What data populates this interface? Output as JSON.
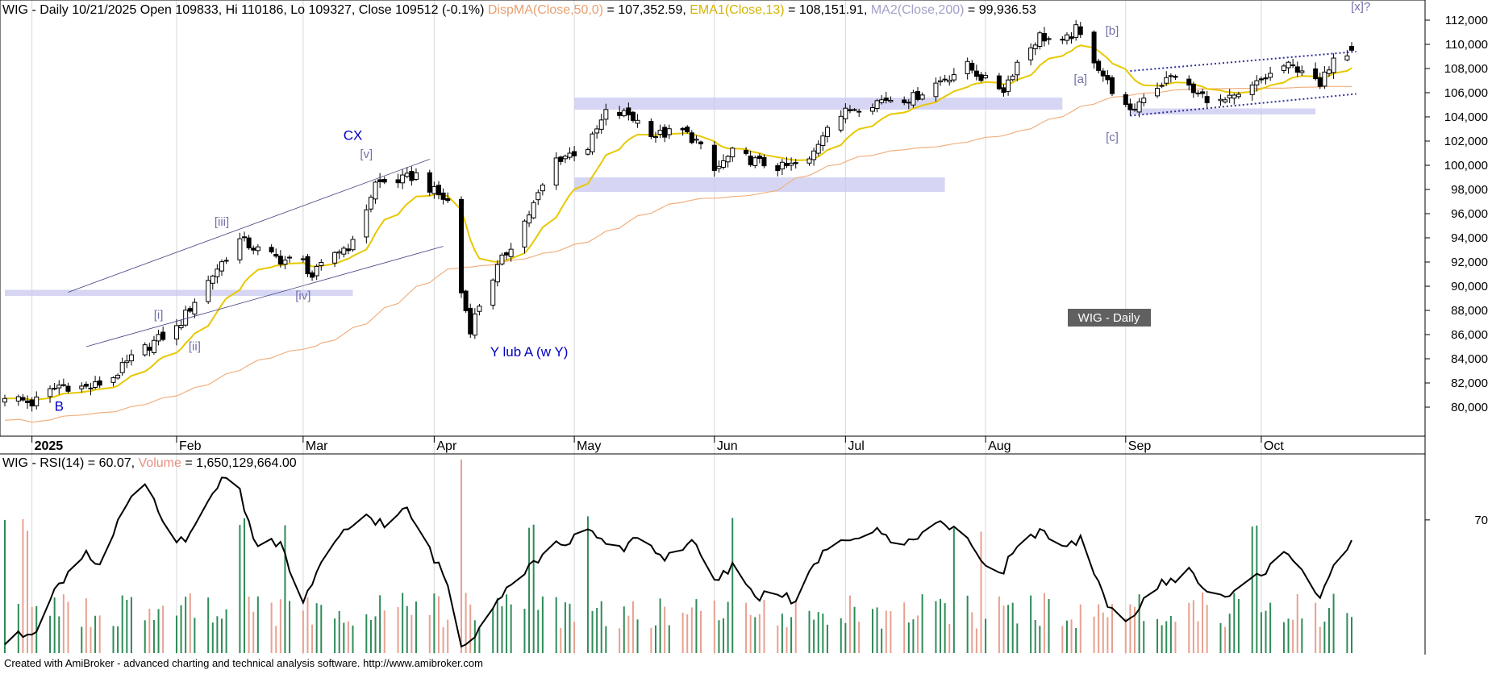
{
  "header": {
    "prefix": "WIG - Daily 10/21/2025 Open 109833, Hi 110186, Lo 109327, Close 109512 (-0.1%)",
    "ma1_label": "DispMA(Close,50,0)",
    "ma1_value": " = 107,352.59,",
    "ema_label": "EMA1(Close,13)",
    "ema_value": " = 108,151.91,",
    "ma2_label": "MA2(Close,200)",
    "ma2_value": " = 99,936.53"
  },
  "rsi_header": {
    "prefix": "WIG - RSI(14) = 60.07,",
    "volume_label": "Volume",
    "volume_value": " = 1,650,129,664.00"
  },
  "footer": {
    "text": "Created with AmiBroker - advanced charting and technical analysis software. http://www.amibroker.com"
  },
  "watermark": "WIG - Daily",
  "colors": {
    "ma1": "#f0b080",
    "ema": "#e8c800",
    "ma2": "#a8a8d0",
    "vol_up": "#2e8b57",
    "vol_down": "#e8a090",
    "band": "#c8c8f0",
    "channel": "#3030a0",
    "wave_label": "#7070a8",
    "wave_major": "#0000c0"
  },
  "chart_data": [
    {
      "type": "candlestick",
      "title": "WIG - Daily",
      "ylim": [
        78000,
        113000
      ],
      "y_ticks": [
        "112,000",
        "110,000",
        "108,000",
        "106,000",
        "104,000",
        "102,000",
        "100,000",
        "98,000",
        "96,000",
        "94,000",
        "92,000",
        "90,000",
        "88,000",
        "86,000",
        "84,000",
        "82,000",
        "80,000"
      ],
      "x_ticks": [
        "2025",
        "Feb",
        "Mar",
        "Apr",
        "May",
        "Jun",
        "Jul",
        "Aug",
        "Sep",
        "Oct"
      ],
      "close_anchors": [
        [
          "2024-12-27",
          81000
        ],
        [
          "2025-01-02",
          80300
        ],
        [
          "2025-01-08",
          81800
        ],
        [
          "2025-01-15",
          81600
        ],
        [
          "2025-01-20",
          82500
        ],
        [
          "2025-01-24",
          84000
        ],
        [
          "2025-01-29",
          85400
        ],
        [
          "2025-02-03",
          86500
        ],
        [
          "2025-02-07",
          88800
        ],
        [
          "2025-02-12",
          91500
        ],
        [
          "2025-02-17",
          93800
        ],
        [
          "2025-02-21",
          93000
        ],
        [
          "2025-02-26",
          92200
        ],
        [
          "2025-03-03",
          92000
        ],
        [
          "2025-03-05",
          90800
        ],
        [
          "2025-03-10",
          92800
        ],
        [
          "2025-03-14",
          93500
        ],
        [
          "2025-03-19",
          98500
        ],
        [
          "2025-03-25",
          98800
        ],
        [
          "2025-03-28",
          99200
        ],
        [
          "2025-04-01",
          97800
        ],
        [
          "2025-04-04",
          97000
        ],
        [
          "2025-04-07",
          89500
        ],
        [
          "2025-04-09",
          86500
        ],
        [
          "2025-04-11",
          88500
        ],
        [
          "2025-04-15",
          91500
        ],
        [
          "2025-04-22",
          96000
        ],
        [
          "2025-04-28",
          100500
        ],
        [
          "2025-05-05",
          101500
        ],
        [
          "2025-05-09",
          104300
        ],
        [
          "2025-05-14",
          104200
        ],
        [
          "2025-05-20",
          102500
        ],
        [
          "2025-05-26",
          102800
        ],
        [
          "2025-05-29",
          102000
        ],
        [
          "2025-06-02",
          99500
        ],
        [
          "2025-06-06",
          101000
        ],
        [
          "2025-06-12",
          100200
        ],
        [
          "2025-06-17",
          99800
        ],
        [
          "2025-06-23",
          100300
        ],
        [
          "2025-06-27",
          103500
        ],
        [
          "2025-07-03",
          104800
        ],
        [
          "2025-07-10",
          105500
        ],
        [
          "2025-07-16",
          105600
        ],
        [
          "2025-07-22",
          107000
        ],
        [
          "2025-07-28",
          108200
        ],
        [
          "2025-08-01",
          107000
        ],
        [
          "2025-08-05",
          106300
        ],
        [
          "2025-08-08",
          108500
        ],
        [
          "2025-08-13",
          110700
        ],
        [
          "2025-08-18",
          110000
        ],
        [
          "2025-08-21",
          111200
        ],
        [
          "2025-08-25",
          108800
        ],
        [
          "2025-08-28",
          106800
        ],
        [
          "2025-09-02",
          104200
        ],
        [
          "2025-09-05",
          105800
        ],
        [
          "2025-09-09",
          106800
        ],
        [
          "2025-09-12",
          107500
        ],
        [
          "2025-09-16",
          106000
        ],
        [
          "2025-09-22",
          105200
        ],
        [
          "2025-09-26",
          105600
        ],
        [
          "2025-10-01",
          107000
        ],
        [
          "2025-10-06",
          108200
        ],
        [
          "2025-10-10",
          108000
        ],
        [
          "2025-10-14",
          106400
        ],
        [
          "2025-10-17",
          109200
        ],
        [
          "2025-10-21",
          109512
        ]
      ],
      "last_bar": {
        "date": "2025-10-21",
        "open": 109833,
        "high": 110186,
        "low": 109327,
        "close": 109512
      },
      "series": [
        {
          "name": "DispMA(Close,50,0)",
          "last": 107352.59
        },
        {
          "name": "EMA1(Close,13)",
          "last": 108151.91
        },
        {
          "name": "MA2(Close,200)",
          "last": 99936.53
        }
      ],
      "support_zones": [
        {
          "from": "2024-12-27",
          "to": "2025-03-14",
          "low": 89200,
          "high": 89700
        },
        {
          "from": "2025-05-02",
          "to": "2025-08-18",
          "low": 104600,
          "high": 105600
        },
        {
          "from": "2025-05-02",
          "to": "2025-07-23",
          "low": 97800,
          "high": 99000
        },
        {
          "from": "2025-09-02",
          "to": "2025-10-13",
          "low": 104200,
          "high": 104700
        }
      ],
      "trendlines": [
        {
          "style": "solid",
          "from": [
            "2025-01-10",
            89500
          ],
          "to": [
            "2025-03-31",
            100500
          ]
        },
        {
          "style": "solid",
          "from": [
            "2025-01-14",
            85000
          ],
          "to": [
            "2025-04-03",
            93300
          ]
        },
        {
          "style": "dotted",
          "from": [
            "2025-09-02",
            107800
          ],
          "to": [
            "2025-10-22",
            109400
          ]
        },
        {
          "style": "dotted",
          "from": [
            "2025-09-02",
            104100
          ],
          "to": [
            "2025-10-22",
            105900
          ]
        }
      ],
      "wave_labels": [
        {
          "text": "B",
          "date": "2025-01-08",
          "value": 79700,
          "major": true
        },
        {
          "text": "[i]",
          "date": "2025-01-30",
          "value": 87300,
          "major": false
        },
        {
          "text": "[ii]",
          "date": "2025-02-07",
          "value": 84700,
          "major": false
        },
        {
          "text": "[iii]",
          "date": "2025-02-13",
          "value": 95000,
          "major": false
        },
        {
          "text": "[iv]",
          "date": "2025-03-03",
          "value": 88900,
          "major": false
        },
        {
          "text": "[v]",
          "date": "2025-03-17",
          "value": 100600,
          "major": false
        },
        {
          "text": "CX",
          "date": "2025-03-14",
          "value": 102100,
          "major": true
        },
        {
          "text": "Y lub A (w Y)",
          "date": "2025-04-22",
          "value": 84200,
          "major": true
        },
        {
          "text": "[a]",
          "date": "2025-08-22",
          "value": 106800,
          "major": false
        },
        {
          "text": "[b]",
          "date": "2025-08-29",
          "value": 110800,
          "major": false
        },
        {
          "text": "[c]",
          "date": "2025-08-29",
          "value": 102000,
          "major": false
        },
        {
          "text": "[x]?",
          "date": "2025-10-23",
          "value": 112800,
          "major": false
        }
      ]
    },
    {
      "type": "line",
      "title": "WIG - RSI(14)",
      "ylim": [
        18,
        92
      ],
      "y_ticks": [
        "70"
      ],
      "series": [
        {
          "name": "RSI(14)",
          "last": 60.07
        }
      ],
      "rsi_anchors": [
        [
          "2024-12-27",
          22
        ],
        [
          "2025-01-03",
          28
        ],
        [
          "2025-01-08",
          45
        ],
        [
          "2025-01-14",
          58
        ],
        [
          "2025-01-17",
          52
        ],
        [
          "2025-01-22",
          72
        ],
        [
          "2025-01-27",
          85
        ],
        [
          "2025-01-31",
          68
        ],
        [
          "2025-02-05",
          60
        ],
        [
          "2025-02-10",
          78
        ],
        [
          "2025-02-14",
          88
        ],
        [
          "2025-02-17",
          82
        ],
        [
          "2025-02-20",
          62
        ],
        [
          "2025-02-26",
          60
        ],
        [
          "2025-03-03",
          38
        ],
        [
          "2025-03-07",
          52
        ],
        [
          "2025-03-12",
          65
        ],
        [
          "2025-03-17",
          72
        ],
        [
          "2025-03-21",
          68
        ],
        [
          "2025-03-26",
          74
        ],
        [
          "2025-04-01",
          55
        ],
        [
          "2025-04-04",
          45
        ],
        [
          "2025-04-07",
          20
        ],
        [
          "2025-04-10",
          26
        ],
        [
          "2025-04-15",
          40
        ],
        [
          "2025-04-22",
          52
        ],
        [
          "2025-04-28",
          60
        ],
        [
          "2025-05-05",
          65
        ],
        [
          "2025-05-12",
          58
        ],
        [
          "2025-05-16",
          64
        ],
        [
          "2025-05-22",
          55
        ],
        [
          "2025-05-28",
          62
        ],
        [
          "2025-06-02",
          45
        ],
        [
          "2025-06-06",
          52
        ],
        [
          "2025-06-11",
          40
        ],
        [
          "2025-06-16",
          42
        ],
        [
          "2025-06-20",
          38
        ],
        [
          "2025-06-25",
          55
        ],
        [
          "2025-07-01",
          62
        ],
        [
          "2025-07-07",
          66
        ],
        [
          "2025-07-14",
          60
        ],
        [
          "2025-07-21",
          70
        ],
        [
          "2025-07-28",
          62
        ],
        [
          "2025-08-04",
          48
        ],
        [
          "2025-08-08",
          60
        ],
        [
          "2025-08-13",
          66
        ],
        [
          "2025-08-18",
          58
        ],
        [
          "2025-08-22",
          62
        ],
        [
          "2025-08-27",
          40
        ],
        [
          "2025-09-01",
          30
        ],
        [
          "2025-09-04",
          36
        ],
        [
          "2025-09-09",
          45
        ],
        [
          "2025-09-15",
          50
        ],
        [
          "2025-09-19",
          42
        ],
        [
          "2025-09-24",
          40
        ],
        [
          "2025-09-30",
          48
        ],
        [
          "2025-10-06",
          56
        ],
        [
          "2025-10-09",
          54
        ],
        [
          "2025-10-14",
          40
        ],
        [
          "2025-10-17",
          53
        ],
        [
          "2025-10-21",
          60.07
        ]
      ],
      "volume": {
        "name": "Volume",
        "last": 1650129664.0,
        "spike_date": "2025-04-07"
      }
    }
  ]
}
